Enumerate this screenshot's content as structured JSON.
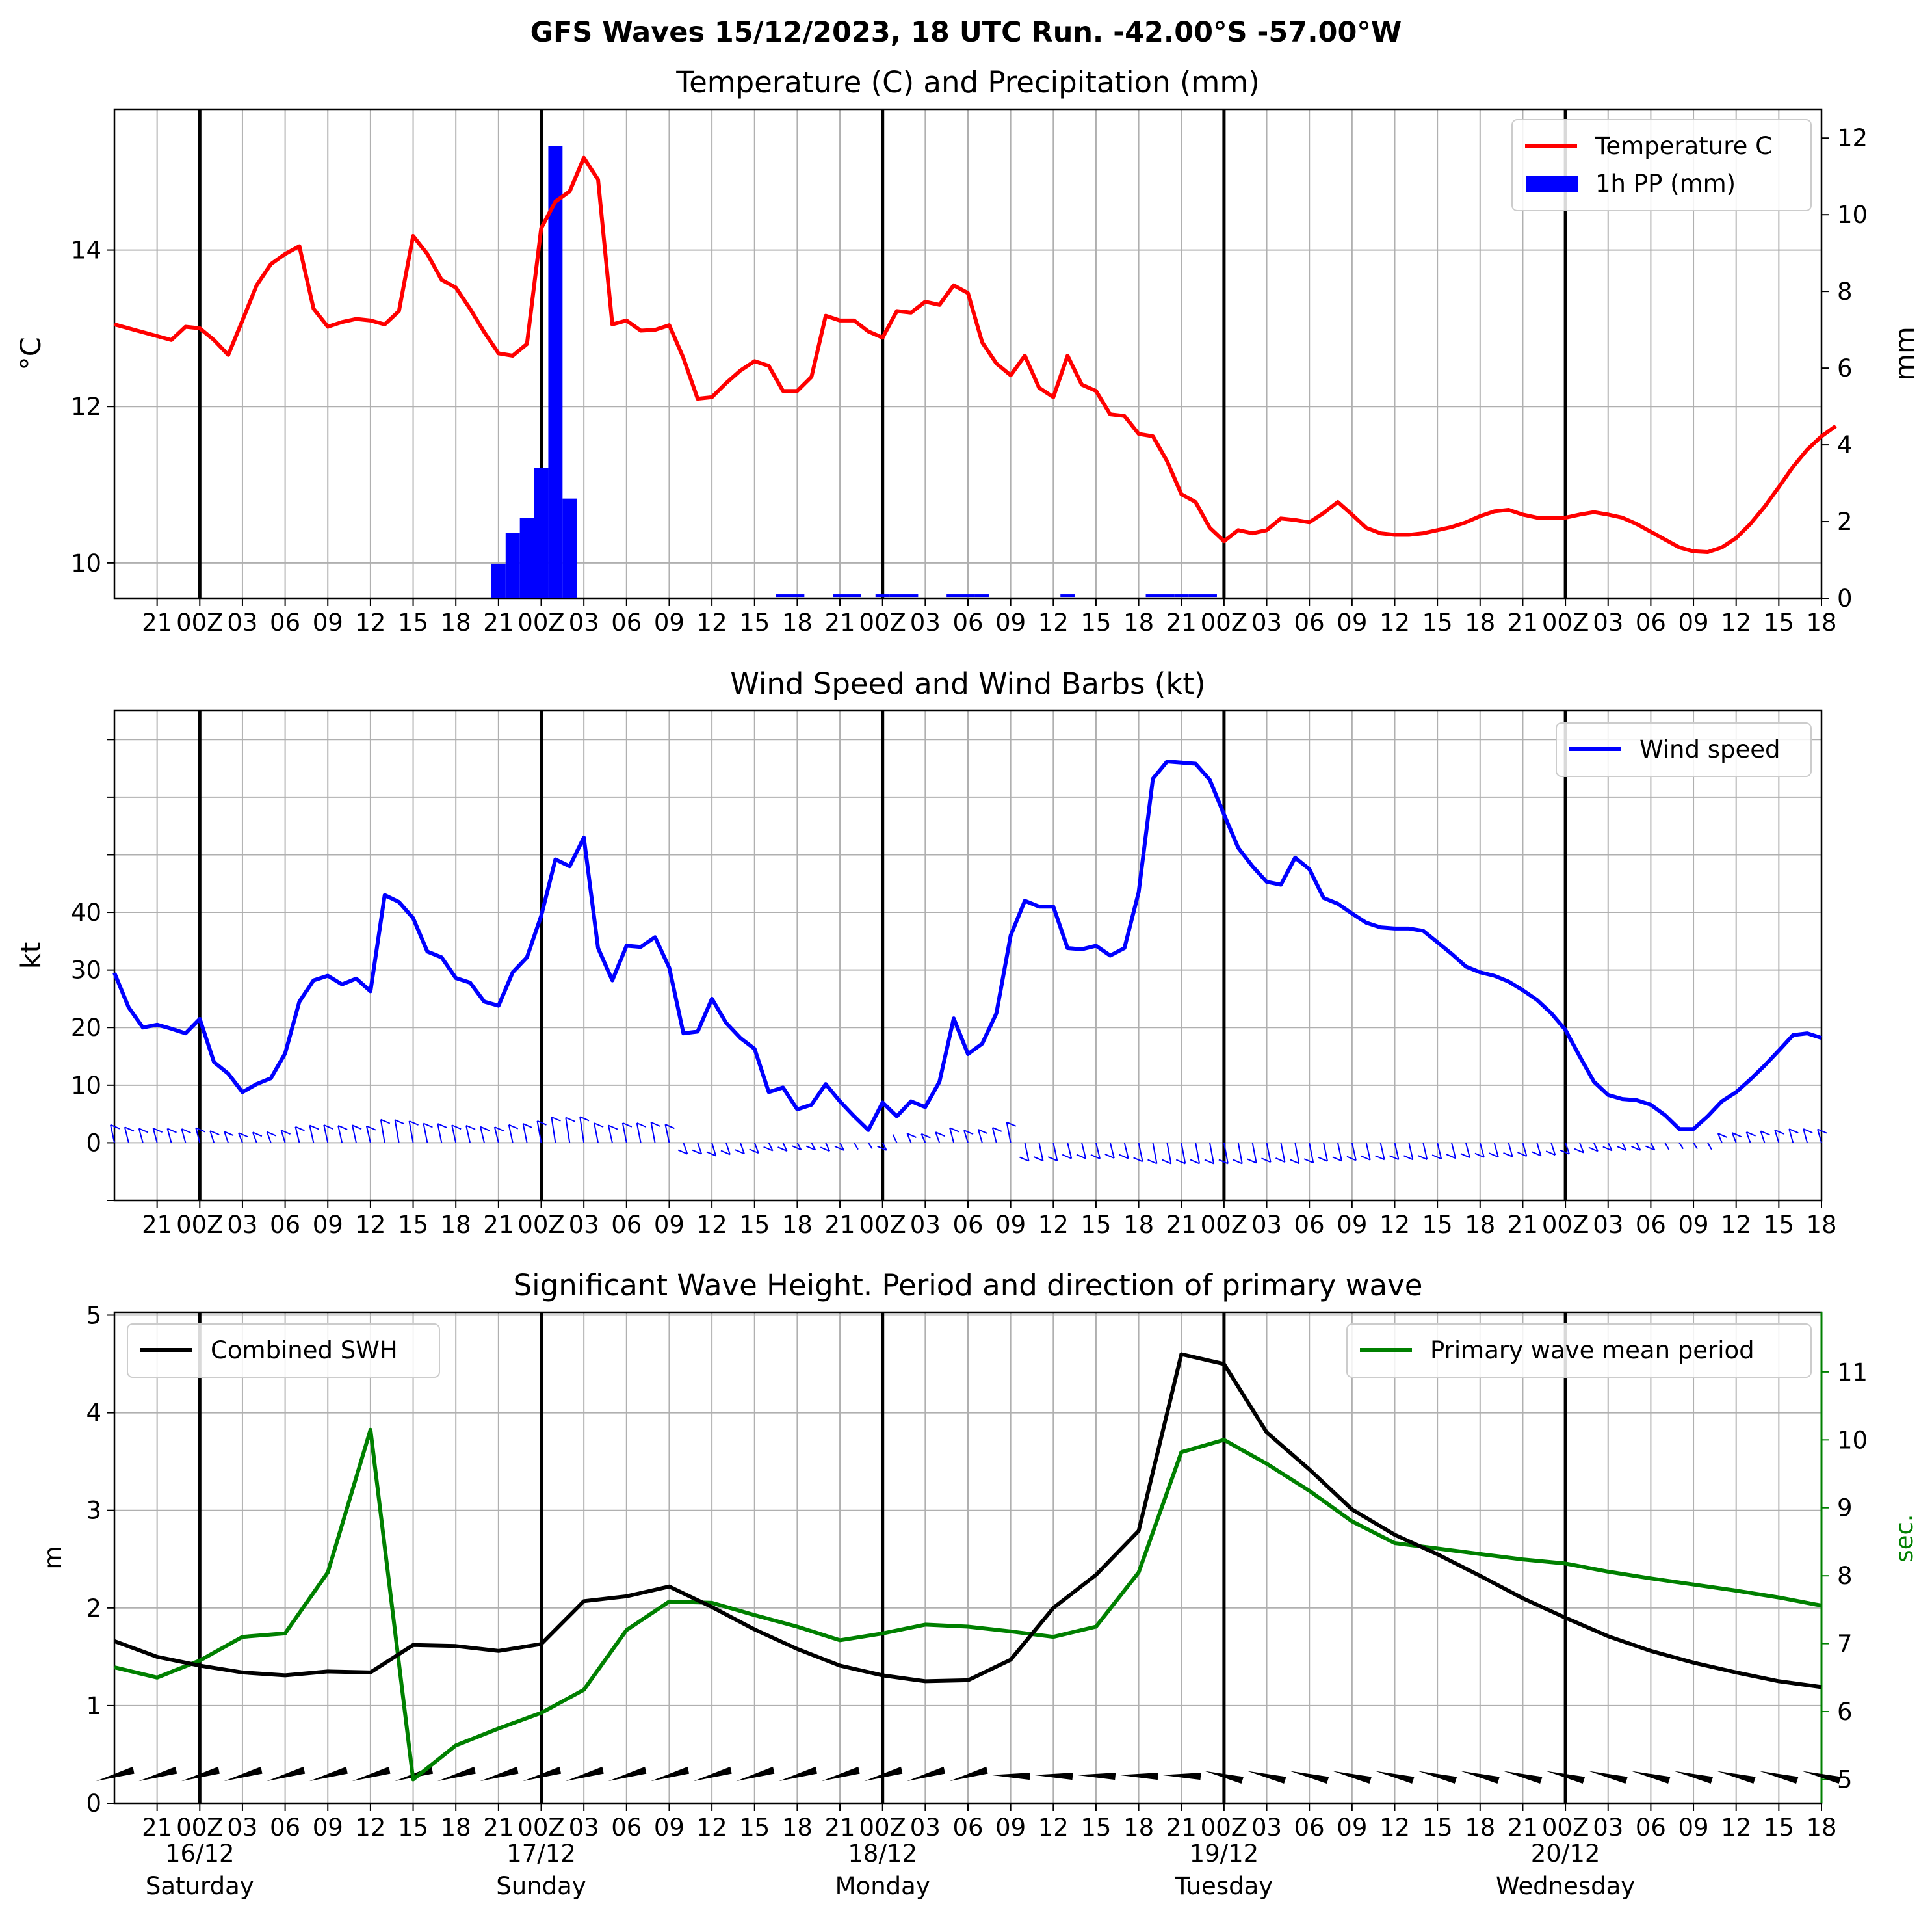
{
  "figure": {
    "suptitle": "GFS Waves 15/12/2023, 18 UTC Run. -42.00°S -57.00°W"
  },
  "time_axis": {
    "hour_labels": [
      "21",
      "00Z",
      "03",
      "06",
      "09",
      "12",
      "15",
      "18",
      "21",
      "00Z",
      "03",
      "06",
      "09",
      "12",
      "15",
      "18",
      "21",
      "00Z",
      "03",
      "06",
      "09",
      "12",
      "15",
      "18",
      "21",
      "00Z",
      "03",
      "06",
      "09",
      "12",
      "15",
      "18",
      "21",
      "00Z",
      "03",
      "06",
      "09",
      "12",
      "15",
      "18"
    ],
    "day_labels": [
      {
        "date": "16/12",
        "weekday": "Saturday"
      },
      {
        "date": "17/12",
        "weekday": "Sunday"
      },
      {
        "date": "18/12",
        "weekday": "Monday"
      },
      {
        "date": "19/12",
        "weekday": "Tuesday"
      },
      {
        "date": "20/12",
        "weekday": "Wednesday"
      }
    ]
  },
  "colors": {
    "temperature": "#ff0000",
    "precipitation": "#0000ff",
    "wind": "#0000ff",
    "swh": "#000000",
    "period": "#008000",
    "grid": "#b0b0b0"
  },
  "chart_data": [
    {
      "type": "line",
      "title": "Temperature (C) and Precipitation (mm)",
      "ylabel": "°C",
      "y2label": "mm",
      "ylim": [
        9.55,
        15.8
      ],
      "y2lim": [
        0,
        12.75
      ],
      "yticks": [
        "10",
        "12",
        "14"
      ],
      "y2ticks": [
        "0",
        "2",
        "4",
        "6",
        "8",
        "10",
        "12"
      ],
      "legend": {
        "position": "top-right",
        "entries": [
          "Temperature C",
          "1h PP (mm)"
        ]
      },
      "grid": true,
      "series": [
        {
          "name": "Temperature C",
          "axis": "left",
          "start": "15/12 18Z",
          "step_hours": 1,
          "values": [
            13.05,
            13.0,
            12.95,
            12.9,
            12.85,
            13.02,
            13.0,
            12.85,
            12.66,
            13.1,
            13.55,
            13.82,
            13.95,
            14.05,
            13.25,
            13.02,
            13.08,
            13.12,
            13.1,
            13.05,
            13.22,
            14.18,
            13.95,
            13.62,
            13.52,
            13.25,
            12.95,
            12.68,
            12.65,
            12.8,
            14.28,
            14.62,
            14.75,
            15.18,
            14.9,
            13.05,
            13.1,
            12.97,
            12.98,
            13.04,
            12.62,
            12.1,
            12.12,
            12.3,
            12.46,
            12.58,
            12.52,
            12.2,
            12.2,
            12.38,
            13.16,
            13.1,
            13.1,
            12.96,
            12.88,
            13.22,
            13.2,
            13.34,
            13.3,
            13.55,
            13.45,
            12.82,
            12.55,
            12.4,
            12.65,
            12.24,
            12.12,
            12.65,
            12.28,
            12.2,
            11.9,
            11.88,
            11.65,
            11.62,
            11.3,
            10.88,
            10.78,
            10.45,
            10.28,
            10.42,
            10.38,
            10.42,
            10.57,
            10.55,
            10.52,
            10.64,
            10.78,
            10.62,
            10.45,
            10.38,
            10.36,
            10.36,
            10.38,
            10.42,
            10.46,
            10.52,
            10.6,
            10.66,
            10.68,
            10.62,
            10.58,
            10.58,
            10.58,
            10.62,
            10.65,
            10.62,
            10.58,
            10.5,
            10.4,
            10.3,
            10.2,
            10.15,
            10.14,
            10.2,
            10.32,
            10.5,
            10.72,
            10.97,
            11.23,
            11.45,
            11.62,
            11.75
          ]
        },
        {
          "name": "1h PP (mm)",
          "axis": "right",
          "type": "bar",
          "start": "16/12 21Z",
          "step_hours": 1,
          "values": [
            0.9,
            1.7,
            2.1,
            3.4,
            11.8,
            2.6
          ]
        },
        {
          "name": "1h PP (mm) traces",
          "axis": "right",
          "type": "bar",
          "hours_from_start": [
            47,
            48,
            51,
            52,
            54,
            55,
            56,
            59,
            60,
            61,
            67,
            73,
            74,
            75,
            76,
            77
          ],
          "values": [
            0.05,
            0.05,
            0.05,
            0.05,
            0.05,
            0.05,
            0.05,
            0.05,
            0.05,
            0.05,
            0.05,
            0.05,
            0.05,
            0.05,
            0.05,
            0.05
          ]
        }
      ]
    },
    {
      "type": "line",
      "title": "Wind Speed and Wind Barbs (kt)",
      "ylabel": "kt",
      "ylim": [
        -10,
        75
      ],
      "yticks": [
        "0",
        "10",
        "20",
        "30",
        "40"
      ],
      "legend": {
        "position": "top-right",
        "entries": [
          "Wind speed"
        ]
      },
      "grid": true,
      "series": [
        {
          "name": "Wind speed",
          "start": "15/12 18Z",
          "step_hours": 1,
          "values": [
            29.5,
            23.5,
            20.0,
            20.5,
            19.8,
            19.0,
            21.5,
            14.0,
            12.0,
            8.8,
            10.2,
            11.2,
            15.5,
            24.5,
            28.2,
            29.0,
            27.5,
            28.5,
            26.3,
            43.0,
            41.8,
            39.0,
            33.2,
            32.2,
            28.6,
            27.8,
            24.5,
            23.8,
            29.6,
            32.2,
            39.4,
            49.2,
            48.0,
            53.0,
            33.8,
            28.2,
            34.2,
            34.0,
            35.7,
            30.4,
            19.0,
            19.3,
            25.0,
            20.8,
            18.2,
            16.3,
            8.8,
            9.6,
            5.8,
            6.6,
            10.2,
            7.2,
            4.6,
            2.2,
            7.0,
            4.6,
            7.2,
            6.2,
            10.6,
            21.6,
            15.4,
            17.2,
            22.5,
            36.0,
            42.0,
            41.0,
            41.0,
            33.8,
            33.6,
            34.2,
            32.5,
            33.8,
            43.5,
            63.2,
            66.2,
            66.0,
            65.8,
            63.0,
            57.0,
            51.2,
            48.0,
            45.3,
            44.8,
            49.5,
            47.5,
            42.5,
            41.5,
            39.8,
            38.2,
            37.4,
            37.2,
            37.2,
            36.8,
            34.8,
            32.8,
            30.6,
            29.6,
            29.0,
            28.0,
            26.5,
            24.8,
            22.5,
            19.6,
            15.0,
            10.6,
            8.3,
            7.6,
            7.4,
            6.6,
            4.8,
            2.4,
            2.4,
            4.6,
            7.2,
            8.8,
            11.0,
            13.4,
            16.0,
            18.7,
            19.0,
            18.2
          ]
        }
      ]
    },
    {
      "type": "line",
      "title": "Significant Wave Height. Period and direction of primary wave",
      "ylabel": "m",
      "y2label": "sec.",
      "ylim": [
        0,
        5.03
      ],
      "y2lim": [
        4.65,
        11.88
      ],
      "yticks": [
        "0",
        "1",
        "2",
        "3",
        "4",
        "5"
      ],
      "y2ticks": [
        "5",
        "6",
        "7",
        "8",
        "9",
        "10",
        "11"
      ],
      "legend": {
        "position": "top-left and top-right",
        "entries": [
          "Combined SWH",
          "Primary wave mean period"
        ]
      },
      "grid": true,
      "series": [
        {
          "name": "Combined SWH",
          "axis": "left",
          "start": "15/12 18Z",
          "step_hours": 3,
          "values": [
            1.66,
            1.5,
            1.41,
            1.34,
            1.31,
            1.35,
            1.34,
            1.62,
            1.61,
            1.56,
            1.63,
            2.07,
            2.12,
            2.22,
            2.01,
            1.78,
            1.58,
            1.41,
            1.31,
            1.25,
            1.26,
            1.47,
            2.0,
            2.34,
            2.79,
            4.6,
            4.5,
            3.8,
            3.42,
            3.01,
            2.75,
            2.55,
            2.33,
            2.1,
            1.9,
            1.71,
            1.56,
            1.44,
            1.34,
            1.25,
            1.19
          ]
        },
        {
          "name": "Primary wave mean period",
          "axis": "right",
          "start": "15/12 18Z",
          "step_hours": 3,
          "values": [
            6.65,
            6.5,
            6.75,
            7.1,
            7.15,
            8.05,
            10.15,
            5.0,
            5.5,
            5.75,
            5.98,
            6.32,
            7.2,
            7.62,
            7.6,
            7.42,
            7.25,
            7.05,
            7.15,
            7.28,
            7.25,
            7.18,
            7.1,
            7.25,
            8.05,
            9.82,
            10.0,
            9.65,
            9.25,
            8.8,
            8.48,
            8.4,
            8.32,
            8.24,
            8.18,
            8.06,
            7.96,
            7.87,
            7.78,
            7.68,
            7.56
          ]
        }
      ]
    }
  ]
}
